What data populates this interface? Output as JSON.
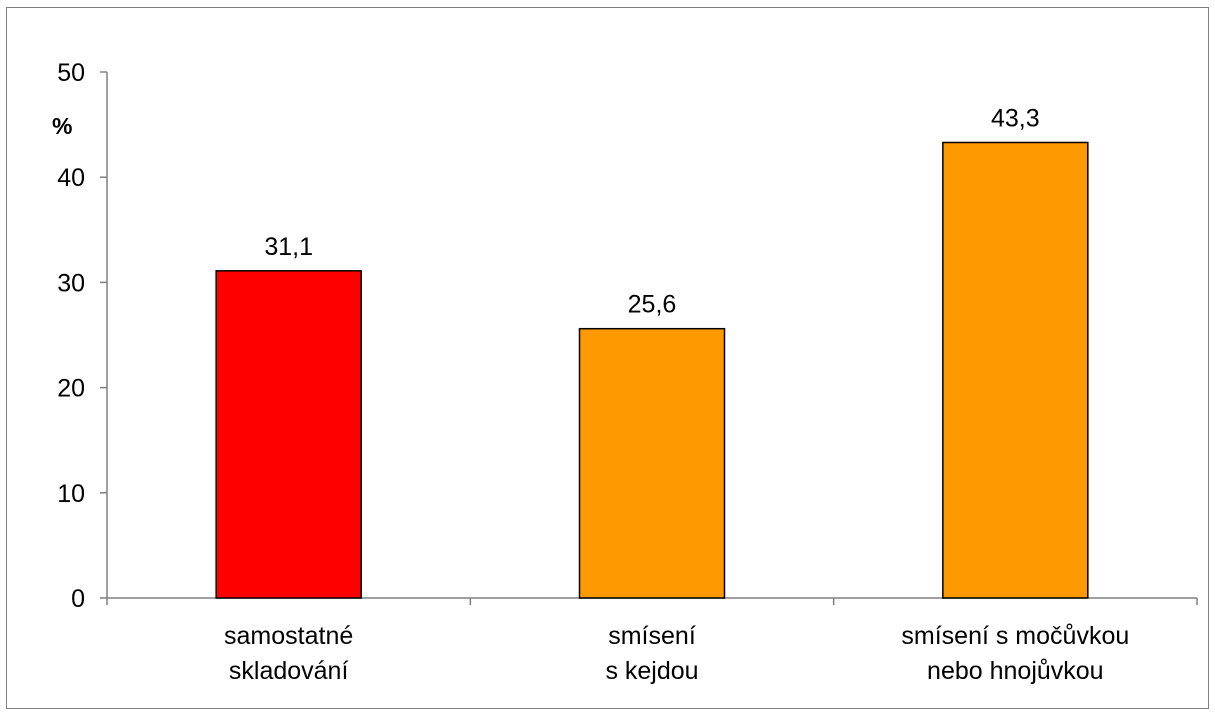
{
  "chart_data": {
    "type": "bar",
    "categories": [
      [
        "samostatné",
        "skladování"
      ],
      [
        "smísení",
        "s kejdou"
      ],
      [
        "smísení s močůvkou",
        "nebo hnojůvkou"
      ]
    ],
    "values": [
      31.1,
      25.6,
      43.3
    ],
    "value_labels": [
      "31,1",
      "25,6",
      "43,3"
    ],
    "bar_colors": [
      "#ff0000",
      "#ff9900",
      "#ff9900"
    ],
    "bar_edge_color": "#000000",
    "ylabel": "%",
    "ylim": [
      0,
      50
    ],
    "yticks": [
      0,
      10,
      20,
      30,
      40,
      50
    ],
    "grid": false,
    "legend": false
  }
}
